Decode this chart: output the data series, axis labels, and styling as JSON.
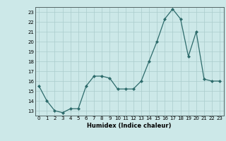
{
  "x": [
    0,
    1,
    2,
    3,
    4,
    5,
    6,
    7,
    8,
    9,
    10,
    11,
    12,
    13,
    14,
    15,
    16,
    17,
    18,
    19,
    20,
    21,
    22,
    23
  ],
  "y": [
    15.5,
    14.0,
    13.0,
    12.8,
    13.2,
    13.2,
    15.5,
    16.5,
    16.5,
    16.3,
    15.2,
    15.2,
    15.2,
    16.0,
    18.0,
    20.0,
    22.3,
    23.3,
    22.3,
    18.5,
    21.0,
    16.2,
    16.0,
    16.0
  ],
  "line_color": "#2d6b6b",
  "marker": "D",
  "marker_size": 2,
  "bg_color": "#cce8e8",
  "grid_color": "#aacccc",
  "xlabel": "Humidex (Indice chaleur)",
  "xlim": [
    -0.5,
    23.5
  ],
  "ylim": [
    12.5,
    23.5
  ],
  "yticks": [
    13,
    14,
    15,
    16,
    17,
    18,
    19,
    20,
    21,
    22,
    23
  ],
  "xticks": [
    0,
    1,
    2,
    3,
    4,
    5,
    6,
    7,
    8,
    9,
    10,
    11,
    12,
    13,
    14,
    15,
    16,
    17,
    18,
    19,
    20,
    21,
    22,
    23
  ]
}
